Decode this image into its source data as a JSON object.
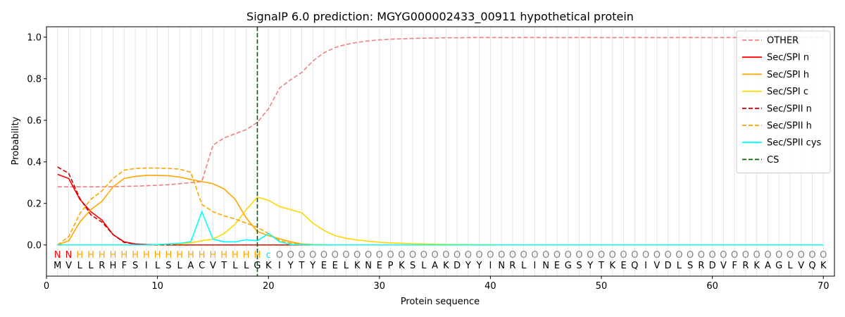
{
  "chart_data": {
    "type": "line",
    "title": "SignalP 6.0 prediction: MGYG000002433_00911 hypothetical protein",
    "xlabel": "Protein sequence",
    "ylabel": "Probability",
    "xlim": [
      0,
      71
    ],
    "ylim": [
      -0.15,
      1.05
    ],
    "xticks": [
      0,
      10,
      20,
      30,
      40,
      50,
      60,
      70
    ],
    "yticks": [
      0.0,
      0.2,
      0.4,
      0.6,
      0.8,
      1.0
    ],
    "xtick_labels": [
      "0",
      "10",
      "20",
      "30",
      "40",
      "50",
      "60",
      "70"
    ],
    "ytick_labels": [
      "0.0",
      "0.2",
      "0.4",
      "0.6",
      "0.8",
      "1.0"
    ],
    "legend_position": "upper right",
    "vertical_gridlines": "at each residue position",
    "sequence": [
      "M",
      "V",
      "L",
      "L",
      "R",
      "H",
      "F",
      "S",
      "I",
      "L",
      "S",
      "L",
      "A",
      "C",
      "V",
      "T",
      "L",
      "L",
      "G",
      "K",
      "I",
      "Y",
      "T",
      "Y",
      "E",
      "E",
      "L",
      "K",
      "N",
      "E",
      "P",
      "K",
      "S",
      "L",
      "A",
      "K",
      "D",
      "Y",
      "Y",
      "I",
      "N",
      "R",
      "L",
      "I",
      "N",
      "E",
      "G",
      "S",
      "Y",
      "T",
      "K",
      "E",
      "Q",
      "I",
      "V",
      "D",
      "L",
      "S",
      "R",
      "D",
      "V",
      "F",
      "R",
      "K",
      "A",
      "G",
      "L",
      "V",
      "Q",
      "K"
    ],
    "annotation": [
      "N",
      "N",
      "H",
      "H",
      "H",
      "H",
      "H",
      "H",
      "H",
      "H",
      "H",
      "H",
      "H",
      "H",
      "H",
      "H",
      "H",
      "H",
      "H",
      "c",
      "O",
      "O",
      "O",
      "O",
      "O",
      "O",
      "O",
      "O",
      "O",
      "O",
      "O",
      "O",
      "O",
      "O",
      "O",
      "O",
      "O",
      "O",
      "O",
      "O",
      "O",
      "O",
      "O",
      "O",
      "O",
      "O",
      "O",
      "O",
      "O",
      "O",
      "O",
      "O",
      "O",
      "O",
      "O",
      "O",
      "O",
      "O",
      "O",
      "O",
      "O",
      "O",
      "O",
      "O",
      "O",
      "O",
      "O",
      "O",
      "O",
      "O"
    ],
    "annotation_colors": {
      "N": "#ff0000",
      "H": "#ffa500",
      "c": "#00e5ee",
      "O": "#808080"
    },
    "cleavage_site": 19,
    "cs_label": "CS",
    "cs_color": "#006400",
    "series": [
      {
        "name": "OTHER",
        "color": "#f08080",
        "dash": "dashed",
        "values": [
          0.28,
          0.28,
          0.28,
          0.28,
          0.28,
          0.28,
          0.282,
          0.283,
          0.285,
          0.287,
          0.29,
          0.295,
          0.3,
          0.305,
          0.48,
          0.515,
          0.535,
          0.555,
          0.59,
          0.655,
          0.755,
          0.795,
          0.83,
          0.885,
          0.925,
          0.95,
          0.965,
          0.975,
          0.982,
          0.987,
          0.99,
          0.992,
          0.994,
          0.995,
          0.996,
          0.997,
          0.997,
          0.998,
          0.998,
          0.998,
          0.998,
          0.998,
          0.998,
          0.998,
          0.998,
          0.998,
          0.998,
          0.998,
          0.998,
          0.998,
          0.998,
          0.998,
          0.998,
          0.998,
          0.998,
          0.998,
          0.998,
          0.998,
          0.998,
          0.998,
          0.998,
          0.998,
          0.998,
          0.998,
          0.998,
          0.998,
          0.998,
          0.998,
          0.998,
          0.998
        ]
      },
      {
        "name": "Sec/SPI n",
        "color": "#ff0000",
        "dash": "solid",
        "values": [
          0.34,
          0.32,
          0.22,
          0.16,
          0.12,
          0.05,
          0.015,
          0.005,
          0.002,
          0.001,
          0,
          0,
          0,
          0,
          0,
          0,
          0,
          0,
          0,
          0,
          0,
          0,
          0,
          0,
          0,
          0,
          0,
          0,
          0,
          0,
          0,
          0,
          0,
          0,
          0,
          0,
          0,
          0,
          0,
          0,
          0,
          0,
          0,
          0,
          0,
          0,
          0,
          0,
          0,
          0,
          0,
          0,
          0,
          0,
          0,
          0,
          0,
          0,
          0,
          0,
          0,
          0,
          0,
          0,
          0,
          0,
          0,
          0,
          0,
          0
        ]
      },
      {
        "name": "Sec/SPI h",
        "color": "#ffa500",
        "dash": "solid",
        "values": [
          0.0,
          0.02,
          0.11,
          0.17,
          0.21,
          0.28,
          0.32,
          0.33,
          0.335,
          0.335,
          0.333,
          0.327,
          0.315,
          0.305,
          0.295,
          0.27,
          0.22,
          0.13,
          0.065,
          0.045,
          0.03,
          0.015,
          0.005,
          0.002,
          0.001,
          0,
          0,
          0,
          0,
          0,
          0,
          0,
          0,
          0,
          0,
          0,
          0,
          0,
          0,
          0,
          0,
          0,
          0,
          0,
          0,
          0,
          0,
          0,
          0,
          0,
          0,
          0,
          0,
          0,
          0,
          0,
          0,
          0,
          0,
          0,
          0,
          0,
          0,
          0,
          0,
          0,
          0,
          0,
          0,
          0
        ]
      },
      {
        "name": "Sec/SPI c",
        "color": "#ffd700",
        "dash": "solid",
        "values": [
          0,
          0,
          0,
          0,
          0,
          0,
          0,
          0,
          0,
          0,
          0.002,
          0.005,
          0.01,
          0.02,
          0.028,
          0.055,
          0.1,
          0.17,
          0.23,
          0.215,
          0.185,
          0.17,
          0.155,
          0.105,
          0.07,
          0.045,
          0.032,
          0.024,
          0.018,
          0.013,
          0.01,
          0.008,
          0.006,
          0.005,
          0.004,
          0.003,
          0.002,
          0.002,
          0.001,
          0.001,
          0,
          0,
          0,
          0,
          0,
          0,
          0,
          0,
          0,
          0,
          0,
          0,
          0,
          0,
          0,
          0,
          0,
          0,
          0,
          0,
          0,
          0,
          0,
          0,
          0,
          0,
          0,
          0,
          0,
          0
        ]
      },
      {
        "name": "Sec/SPII n",
        "color": "#cc0000",
        "dash": "dashed",
        "values": [
          0.375,
          0.345,
          0.225,
          0.145,
          0.11,
          0.05,
          0.012,
          0.004,
          0.001,
          0,
          0,
          0,
          0,
          0,
          0,
          0,
          0,
          0,
          0,
          0,
          0,
          0,
          0,
          0,
          0,
          0,
          0,
          0,
          0,
          0,
          0,
          0,
          0,
          0,
          0,
          0,
          0,
          0,
          0,
          0,
          0,
          0,
          0,
          0,
          0,
          0,
          0,
          0,
          0,
          0,
          0,
          0,
          0,
          0,
          0,
          0,
          0,
          0,
          0,
          0,
          0,
          0,
          0,
          0,
          0,
          0,
          0,
          0,
          0,
          0
        ]
      },
      {
        "name": "Sec/SPII h",
        "color": "#ffa500",
        "dash": "dashed",
        "values": [
          0.0,
          0.04,
          0.15,
          0.22,
          0.26,
          0.32,
          0.36,
          0.368,
          0.37,
          0.37,
          0.368,
          0.365,
          0.35,
          0.195,
          0.16,
          0.14,
          0.125,
          0.105,
          0.085,
          0.055,
          0.022,
          0.008,
          0.003,
          0.001,
          0,
          0,
          0,
          0,
          0,
          0,
          0,
          0,
          0,
          0,
          0,
          0,
          0,
          0,
          0,
          0,
          0,
          0,
          0,
          0,
          0,
          0,
          0,
          0,
          0,
          0,
          0,
          0,
          0,
          0,
          0,
          0,
          0,
          0,
          0,
          0,
          0,
          0,
          0,
          0,
          0,
          0,
          0,
          0,
          0,
          0
        ]
      },
      {
        "name": "Sec/SPII cys",
        "color": "#00ffff",
        "dash": "solid",
        "values": [
          0,
          0,
          0,
          0,
          0,
          0,
          0,
          0,
          0,
          0.002,
          0.005,
          0.008,
          0.015,
          0.16,
          0.028,
          0.015,
          0.015,
          0.025,
          0.02,
          0.055,
          0.015,
          0.002,
          0.001,
          0,
          0,
          0,
          0,
          0,
          0,
          0,
          0,
          0,
          0,
          0,
          0,
          0,
          0,
          0,
          0,
          0,
          0,
          0,
          0,
          0,
          0,
          0,
          0,
          0,
          0,
          0,
          0,
          0,
          0,
          0,
          0,
          0,
          0,
          0,
          0,
          0,
          0,
          0,
          0,
          0,
          0,
          0,
          0,
          0,
          0,
          0
        ]
      }
    ]
  }
}
